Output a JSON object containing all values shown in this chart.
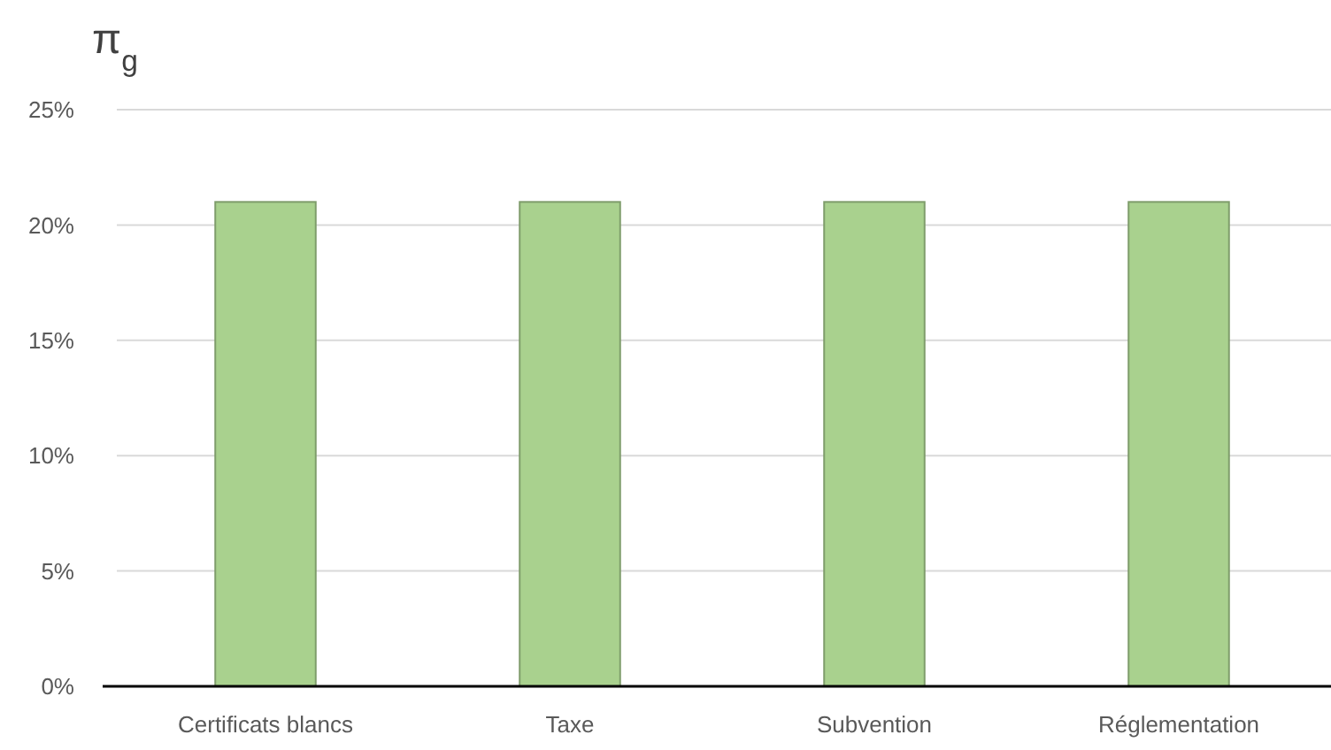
{
  "chart_data": {
    "type": "bar",
    "title": "π$_{g}$",
    "categories": [
      "Certificats blancs",
      "Taxe",
      "Subvention",
      "Réglementation"
    ],
    "values": [
      21,
      21,
      21,
      21
    ],
    "color": "#a9d18e",
    "ylim": [
      0,
      25
    ],
    "yticks": [
      {
        "value": 0,
        "label": "0%"
      },
      {
        "value": 5,
        "label": "5%"
      },
      {
        "value": 10,
        "label": "10%"
      },
      {
        "value": 15,
        "label": "15%"
      },
      {
        "value": 20,
        "label": "20%"
      },
      {
        "value": 25,
        "label": "25%"
      }
    ],
    "grid": "y"
  }
}
